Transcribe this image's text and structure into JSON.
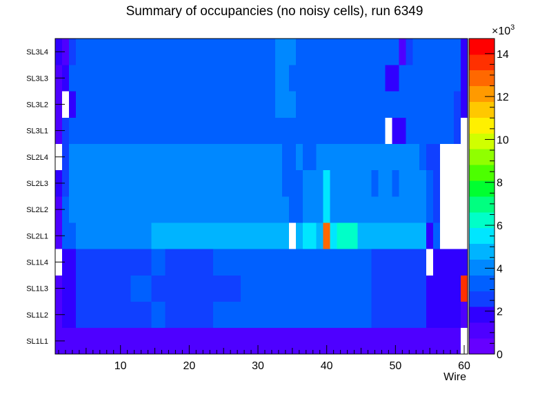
{
  "chart_data": {
    "type": "heatmap",
    "title": "Summary of occupancies (no noisy cells), run 6349",
    "xlabel": "Wire",
    "ylabel": "",
    "x_range": [
      0.5,
      60.5
    ],
    "x_ticks": [
      "10",
      "20",
      "30",
      "40",
      "50",
      "60"
    ],
    "x_tick_values": [
      10,
      20,
      30,
      40,
      50,
      60
    ],
    "y_categories": [
      "SL1L1",
      "SL1L2",
      "SL1L3",
      "SL1L4",
      "SL2L1",
      "SL2L2",
      "SL2L3",
      "SL2L4",
      "SL3L1",
      "SL3L2",
      "SL3L3",
      "SL3L4"
    ],
    "z_range": [
      0,
      14700
    ],
    "z_exponent_label": "×10",
    "z_exponent": "3",
    "z_ticks": [
      "0",
      "2",
      "4",
      "6",
      "8",
      "10",
      "12",
      "14"
    ],
    "z_tick_values": [
      0,
      2000,
      4000,
      6000,
      8000,
      10000,
      12000,
      14000
    ],
    "palette": [
      "#6600ff",
      "#4e00ff",
      "#3000ff",
      "#1040ff",
      "#0060ff",
      "#0088ff",
      "#00b4ff",
      "#00e6ff",
      "#00ffc8",
      "#00ff80",
      "#00ff30",
      "#4cff00",
      "#90ff00",
      "#d0ff00",
      "#fff000",
      "#ffc800",
      "#ff9a00",
      "#ff6800",
      "#ff3000",
      "#ff0000"
    ],
    "missing_color": "#ffffff",
    "rows": {
      "SL1L1": [
        [
          1,
          60,
          800
        ],
        [
          60,
          60,
          null
        ]
      ],
      "SL1L2": [
        [
          1,
          1,
          1200
        ],
        [
          2,
          3,
          1800
        ],
        [
          4,
          8,
          2500
        ],
        [
          9,
          14,
          2800
        ],
        [
          15,
          16,
          3500
        ],
        [
          17,
          23,
          2800
        ],
        [
          24,
          46,
          3600
        ],
        [
          47,
          54,
          2800
        ],
        [
          55,
          59,
          2200
        ],
        [
          60,
          60,
          1200
        ]
      ],
      "SL1L3": [
        [
          1,
          1,
          1200
        ],
        [
          2,
          3,
          1800
        ],
        [
          4,
          8,
          2500
        ],
        [
          9,
          11,
          2800
        ],
        [
          12,
          14,
          3500
        ],
        [
          15,
          26,
          2800
        ],
        [
          27,
          27,
          2500
        ],
        [
          28,
          46,
          3600
        ],
        [
          47,
          54,
          2800
        ],
        [
          55,
          59,
          2200
        ],
        [
          60,
          60,
          13700
        ]
      ],
      "SL1L4": [
        [
          1,
          1,
          null
        ],
        [
          2,
          3,
          1800
        ],
        [
          4,
          8,
          2500
        ],
        [
          9,
          14,
          2800
        ],
        [
          15,
          16,
          3500
        ],
        [
          17,
          23,
          2800
        ],
        [
          24,
          46,
          3600
        ],
        [
          47,
          54,
          2800
        ],
        [
          55,
          55,
          null
        ],
        [
          56,
          57,
          2200
        ],
        [
          58,
          60,
          1600
        ]
      ],
      "SL2L1": [
        [
          1,
          1,
          1200
        ],
        [
          2,
          3,
          3000
        ],
        [
          4,
          5,
          4400
        ],
        [
          6,
          7,
          3800
        ],
        [
          8,
          14,
          4300
        ],
        [
          15,
          34,
          4600
        ],
        [
          35,
          35,
          null
        ],
        [
          36,
          36,
          4600
        ],
        [
          37,
          38,
          5800
        ],
        [
          39,
          39,
          4600
        ],
        [
          40,
          40,
          12500
        ],
        [
          41,
          41,
          5800
        ],
        [
          42,
          44,
          6600
        ],
        [
          45,
          54,
          4600
        ],
        [
          55,
          55,
          2200
        ],
        [
          56,
          56,
          3000
        ],
        [
          57,
          60,
          null
        ]
      ],
      "SL2L2": [
        [
          1,
          1,
          1200
        ],
        [
          2,
          2,
          3000
        ],
        [
          3,
          6,
          3800
        ],
        [
          7,
          7,
          4300
        ],
        [
          8,
          34,
          4400
        ],
        [
          35,
          36,
          3600
        ],
        [
          37,
          39,
          4400
        ],
        [
          40,
          40,
          5200
        ],
        [
          41,
          54,
          4400
        ],
        [
          55,
          55,
          3300
        ],
        [
          56,
          56,
          2300
        ],
        [
          57,
          60,
          null
        ]
      ],
      "SL2L3": [
        [
          1,
          1,
          1600
        ],
        [
          2,
          2,
          2800
        ],
        [
          3,
          4,
          4000
        ],
        [
          5,
          33,
          4400
        ],
        [
          34,
          36,
          3600
        ],
        [
          37,
          39,
          4300
        ],
        [
          40,
          40,
          5800
        ],
        [
          41,
          46,
          4300
        ],
        [
          47,
          47,
          3600
        ],
        [
          48,
          49,
          4300
        ],
        [
          50,
          50,
          3600
        ],
        [
          51,
          54,
          4400
        ],
        [
          55,
          55,
          3300
        ],
        [
          56,
          56,
          2300
        ],
        [
          57,
          60,
          null
        ]
      ],
      "SL2L4": [
        [
          1,
          1,
          null
        ],
        [
          2,
          2,
          2800
        ],
        [
          3,
          4,
          3800
        ],
        [
          5,
          33,
          4400
        ],
        [
          34,
          35,
          3600
        ],
        [
          36,
          36,
          4300
        ],
        [
          37,
          38,
          3600
        ],
        [
          39,
          53,
          4400
        ],
        [
          54,
          54,
          3600
        ],
        [
          55,
          56,
          2800
        ],
        [
          57,
          60,
          null
        ]
      ],
      "SL3L1": [
        [
          1,
          1,
          1200
        ],
        [
          2,
          2,
          2800
        ],
        [
          3,
          4,
          3000
        ],
        [
          5,
          8,
          3600
        ],
        [
          9,
          9,
          3000
        ],
        [
          10,
          26,
          3600
        ],
        [
          27,
          33,
          3400
        ],
        [
          34,
          38,
          3600
        ],
        [
          39,
          48,
          3400
        ],
        [
          49,
          49,
          null
        ],
        [
          50,
          51,
          2200
        ],
        [
          52,
          58,
          3400
        ],
        [
          59,
          59,
          2600
        ],
        [
          60,
          60,
          null
        ]
      ],
      "SL3L2": [
        [
          1,
          1,
          1200
        ],
        [
          2,
          2,
          null
        ],
        [
          3,
          3,
          2200
        ],
        [
          4,
          8,
          3400
        ],
        [
          9,
          9,
          3000
        ],
        [
          10,
          32,
          3600
        ],
        [
          33,
          35,
          3900
        ],
        [
          36,
          37,
          3600
        ],
        [
          38,
          39,
          3400
        ],
        [
          40,
          41,
          3600
        ],
        [
          42,
          42,
          3400
        ],
        [
          43,
          44,
          3600
        ],
        [
          45,
          50,
          3400
        ],
        [
          51,
          52,
          3000
        ],
        [
          53,
          58,
          3400
        ],
        [
          59,
          59,
          2600
        ],
        [
          60,
          60,
          2200
        ]
      ],
      "SL3L3": [
        [
          1,
          1,
          1200
        ],
        [
          2,
          2,
          1600
        ],
        [
          3,
          5,
          3000
        ],
        [
          6,
          32,
          3600
        ],
        [
          33,
          34,
          4400
        ],
        [
          35,
          39,
          3600
        ],
        [
          40,
          41,
          3400
        ],
        [
          42,
          48,
          3600
        ],
        [
          49,
          50,
          2200
        ],
        [
          51,
          58,
          3600
        ],
        [
          59,
          59,
          3000
        ],
        [
          60,
          60,
          1600
        ]
      ],
      "SL3L4": [
        [
          1,
          1,
          2000
        ],
        [
          2,
          2,
          1200
        ],
        [
          3,
          3,
          2300
        ],
        [
          4,
          5,
          3000
        ],
        [
          6,
          25,
          3600
        ],
        [
          26,
          26,
          3200
        ],
        [
          27,
          32,
          3600
        ],
        [
          33,
          35,
          4400
        ],
        [
          36,
          37,
          3600
        ],
        [
          38,
          38,
          3400
        ],
        [
          39,
          40,
          3600
        ],
        [
          41,
          41,
          3400
        ],
        [
          42,
          50,
          3600
        ],
        [
          51,
          51,
          1400
        ],
        [
          52,
          52,
          2600
        ],
        [
          53,
          58,
          3600
        ],
        [
          59,
          59,
          3000
        ],
        [
          60,
          60,
          2200
        ]
      ]
    }
  }
}
